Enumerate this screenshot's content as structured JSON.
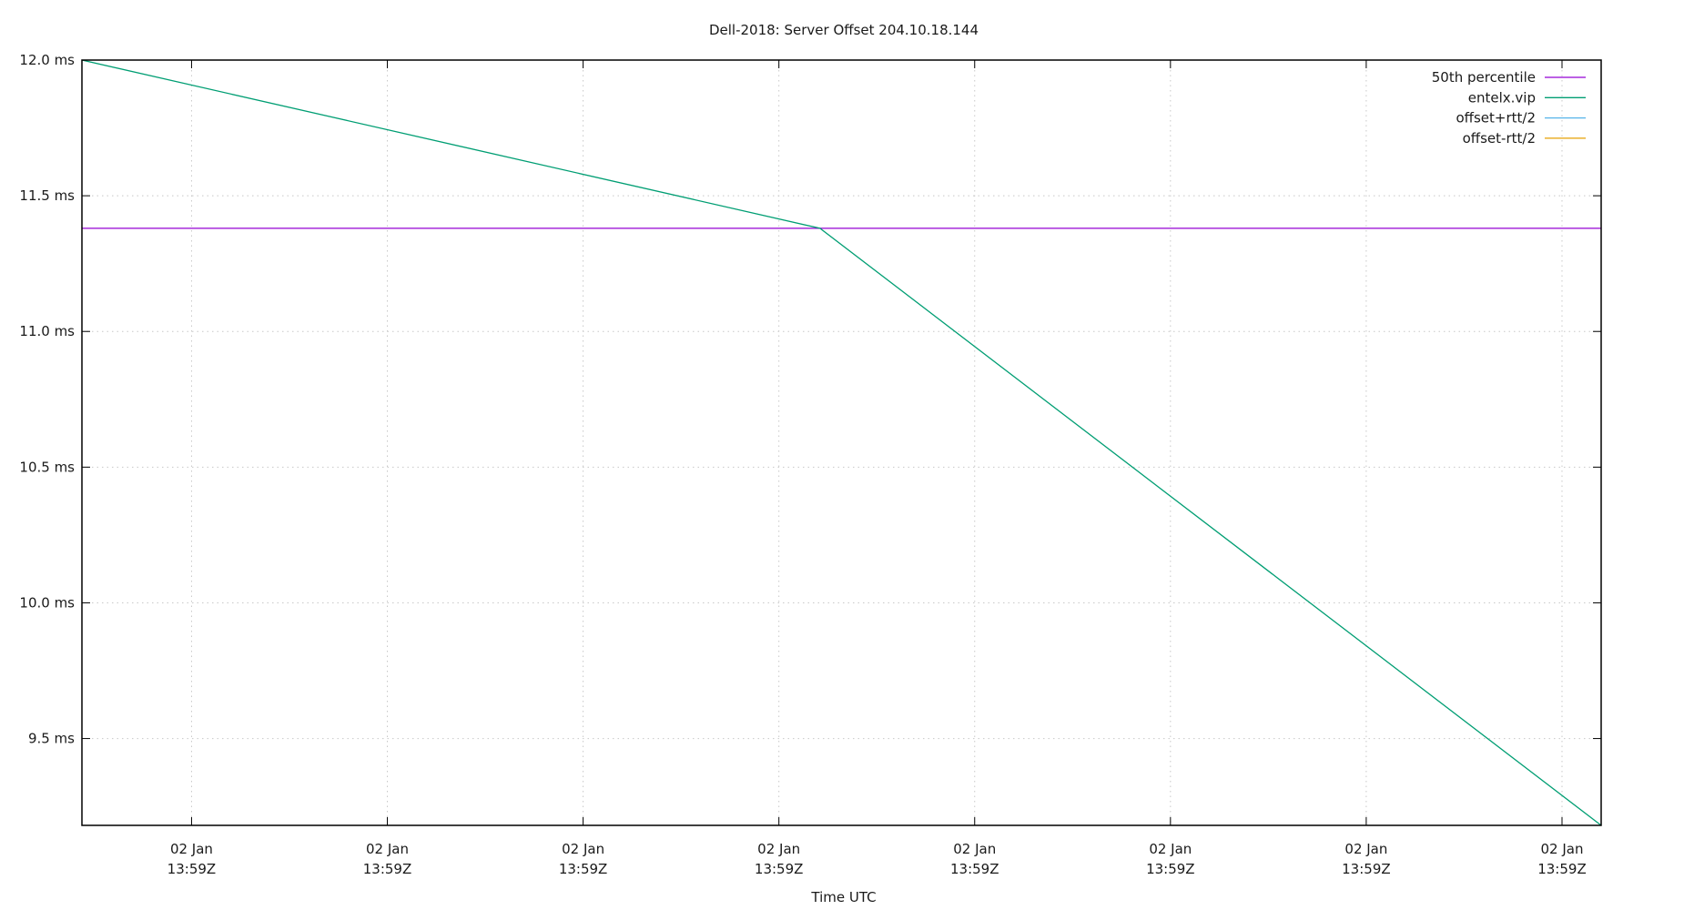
{
  "chart_data": {
    "type": "line",
    "title": "Dell-2018: Server Offset 204.10.18.144",
    "xlabel": "Time UTC",
    "ylabel": "",
    "ylim": [
      9.18,
      12.0
    ],
    "xlim": [
      -0.56,
      7.2
    ],
    "yticks": [
      {
        "value": 12.0,
        "label": "12.0 ms"
      },
      {
        "value": 11.5,
        "label": "11.5 ms"
      },
      {
        "value": 11.0,
        "label": "11.0 ms"
      },
      {
        "value": 10.5,
        "label": "10.5 ms"
      },
      {
        "value": 10.0,
        "label": "10.0 ms"
      },
      {
        "value": 9.5,
        "label": "9.5 ms"
      }
    ],
    "xticks": [
      {
        "value": 0,
        "line1": "02 Jan",
        "line2": "13:59Z"
      },
      {
        "value": 1,
        "line1": "02 Jan",
        "line2": "13:59Z"
      },
      {
        "value": 2,
        "line1": "02 Jan",
        "line2": "13:59Z"
      },
      {
        "value": 3,
        "line1": "02 Jan",
        "line2": "13:59Z"
      },
      {
        "value": 4,
        "line1": "02 Jan",
        "line2": "13:59Z"
      },
      {
        "value": 5,
        "line1": "02 Jan",
        "line2": "13:59Z"
      },
      {
        "value": 6,
        "line1": "02 Jan",
        "line2": "13:59Z"
      },
      {
        "value": 7,
        "line1": "02 Jan",
        "line2": "13:59Z"
      }
    ],
    "grid": true,
    "legend": "top-right",
    "series": [
      {
        "name": "50th percentile",
        "color": "#9400d3",
        "x": [
          -0.56,
          7.2
        ],
        "y": [
          11.38,
          11.38
        ]
      },
      {
        "name": "entelx.vip",
        "color": "#009e73",
        "x": [
          -0.56,
          3.21,
          7.2
        ],
        "y": [
          12.0,
          11.38,
          9.18
        ]
      },
      {
        "name": "offset+rtt/2",
        "color": "#56b4e9",
        "x": [],
        "y": []
      },
      {
        "name": "offset-rtt/2",
        "color": "#e69f00",
        "x": [],
        "y": []
      }
    ]
  }
}
